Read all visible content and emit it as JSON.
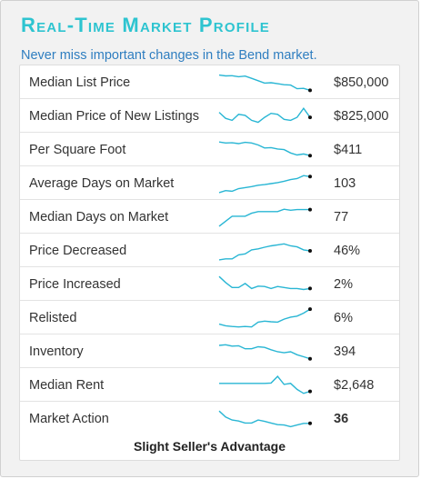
{
  "header": {
    "title": "Real-Time Market Profile",
    "subtitle": "Never miss important changes in the Bend market."
  },
  "colors": {
    "title": "#2ec4d0",
    "subtitle": "#2f7ec0",
    "sparkline": "#29b6d4",
    "endpoint": "#111111"
  },
  "rows": [
    {
      "label": "Median List Price",
      "value": "$850,000",
      "trend": [
        0.88,
        0.84,
        0.85,
        0.8,
        0.83,
        0.72,
        0.6,
        0.48,
        0.5,
        0.45,
        0.4,
        0.38,
        0.2,
        0.22,
        0.12
      ]
    },
    {
      "label": "Median Price of New Listings",
      "value": "$825,000",
      "trend": [
        0.7,
        0.4,
        0.3,
        0.6,
        0.55,
        0.3,
        0.2,
        0.45,
        0.65,
        0.6,
        0.35,
        0.3,
        0.45,
        0.9,
        0.45
      ]
    },
    {
      "label": "Per Square Foot",
      "value": "$411",
      "trend": [
        0.9,
        0.85,
        0.86,
        0.82,
        0.88,
        0.85,
        0.75,
        0.6,
        0.62,
        0.55,
        0.52,
        0.35,
        0.25,
        0.3,
        0.22
      ]
    },
    {
      "label": "Average Days on Market",
      "value": "103",
      "trend": [
        0.05,
        0.15,
        0.12,
        0.25,
        0.3,
        0.35,
        0.42,
        0.45,
        0.5,
        0.55,
        0.62,
        0.7,
        0.75,
        0.9,
        0.85
      ]
    },
    {
      "label": "Median Days on Market",
      "value": "77",
      "trend": [
        0.05,
        0.3,
        0.55,
        0.55,
        0.55,
        0.7,
        0.78,
        0.78,
        0.78,
        0.78,
        0.9,
        0.85,
        0.88,
        0.88,
        0.88
      ]
    },
    {
      "label": "Price Decreased",
      "value": "46%",
      "trend": [
        0.05,
        0.1,
        0.1,
        0.3,
        0.35,
        0.55,
        0.6,
        0.68,
        0.75,
        0.8,
        0.85,
        0.75,
        0.7,
        0.55,
        0.5
      ]
    },
    {
      "label": "Price Increased",
      "value": "2%",
      "trend": [
        0.9,
        0.6,
        0.35,
        0.35,
        0.55,
        0.3,
        0.42,
        0.4,
        0.3,
        0.4,
        0.35,
        0.3,
        0.3,
        0.25,
        0.3
      ]
    },
    {
      "label": "Relisted",
      "value": "6%",
      "trend": [
        0.2,
        0.12,
        0.08,
        0.06,
        0.08,
        0.06,
        0.3,
        0.35,
        0.32,
        0.3,
        0.45,
        0.55,
        0.6,
        0.75,
        0.95
      ]
    },
    {
      "label": "Inventory",
      "value": "394",
      "trend": [
        0.82,
        0.85,
        0.78,
        0.8,
        0.65,
        0.65,
        0.75,
        0.72,
        0.6,
        0.5,
        0.45,
        0.5,
        0.35,
        0.25,
        0.15
      ]
    },
    {
      "label": "Median Rent",
      "value": "$2,648",
      "trend": [
        0.6,
        0.6,
        0.6,
        0.6,
        0.6,
        0.6,
        0.6,
        0.6,
        0.62,
        0.95,
        0.55,
        0.6,
        0.3,
        0.1,
        0.2
      ]
    },
    {
      "label": "Market Action",
      "value": "36",
      "trend": [
        0.9,
        0.6,
        0.45,
        0.4,
        0.3,
        0.3,
        0.45,
        0.38,
        0.3,
        0.22,
        0.2,
        0.12,
        0.2,
        0.28,
        0.28
      ]
    }
  ],
  "footer": {
    "status": "Slight Seller's Advantage"
  }
}
